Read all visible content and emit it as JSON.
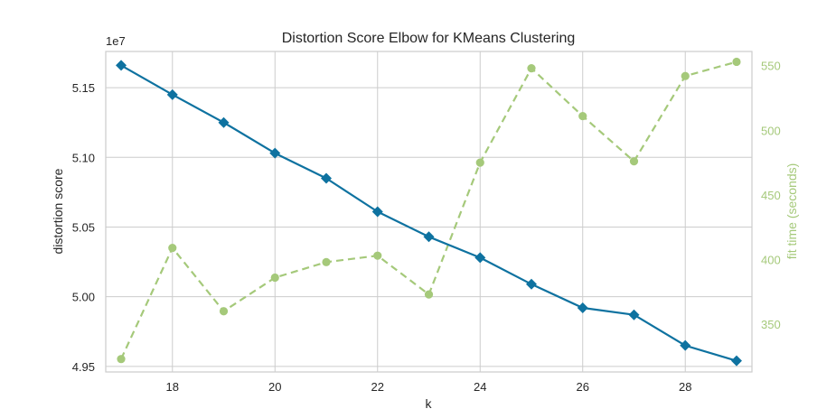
{
  "chart_data": {
    "type": "line",
    "title": "Distortion Score Elbow for KMeans Clustering",
    "xlabel": "k",
    "ylabel": "distortion score",
    "y2label": "fit time (seconds)",
    "y_offset_label": "1e7",
    "xlim": [
      16.7,
      29.3
    ],
    "ylim": [
      4.946,
      5.176
    ],
    "y2lim": [
      313,
      561
    ],
    "x_ticks": [
      18,
      20,
      22,
      24,
      26,
      28
    ],
    "y_ticks": [
      4.95,
      5.0,
      5.05,
      5.1,
      5.15
    ],
    "y_tick_labels": [
      "4.95",
      "5.00",
      "5.05",
      "5.10",
      "5.15"
    ],
    "y2_ticks": [
      350,
      400,
      450,
      500,
      550
    ],
    "grid": true,
    "x": [
      17,
      18,
      19,
      20,
      21,
      22,
      23,
      24,
      25,
      26,
      27,
      28,
      29
    ],
    "series": [
      {
        "values": [
          5.166,
          5.145,
          5.125,
          5.103,
          5.085,
          5.061,
          5.043,
          5.028,
          5.009,
          4.992,
          4.987,
          4.965,
          4.954
        ],
        "color": "#0e72a0",
        "marker": "diamond",
        "linestyle": "solid",
        "axis": "left"
      },
      {
        "values": [
          323,
          409,
          360,
          386,
          398,
          403,
          373,
          475,
          548,
          511,
          476,
          542,
          553
        ],
        "color": "#a5c97a",
        "marker": "circle",
        "linestyle": "dashed",
        "axis": "right"
      }
    ]
  }
}
